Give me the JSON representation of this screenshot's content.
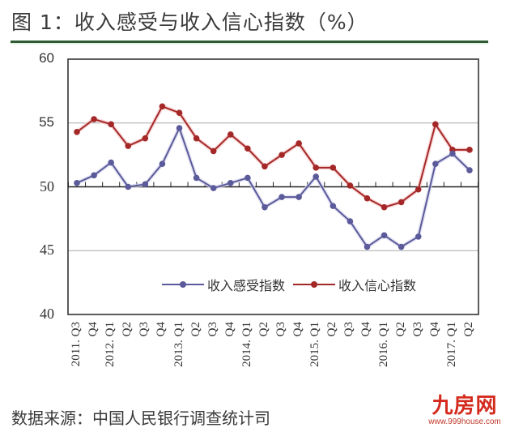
{
  "title": "图 1：收入感受与收入信心指数（%）",
  "source": "数据来源：中国人民银行调查统计司",
  "watermark": {
    "logo": "九房网",
    "url": "www.999house.com"
  },
  "colors": {
    "series1": "#5b5a9a",
    "series2": "#a52828",
    "rule": "#2f5a33",
    "frame": "#333333"
  },
  "chart_data": {
    "type": "line",
    "title": "图 1：收入感受与收入信心指数（%）",
    "xlabel": "",
    "ylabel": "",
    "ylim": [
      40,
      60
    ],
    "yticks": [
      40,
      45,
      50,
      55,
      60
    ],
    "grid": "horizontal at 45, 55; baseline axis at 50",
    "legend_position": "inside bottom",
    "categories": [
      "2011. Q3",
      "Q4",
      "2012. Q1",
      "Q2",
      "Q3",
      "Q4",
      "2013. Q1",
      "Q2",
      "Q3",
      "Q4",
      "2014. Q1",
      "Q2",
      "Q3",
      "Q4",
      "2015. Q1",
      "Q2",
      "Q3",
      "Q4",
      "2016. Q1",
      "Q2",
      "Q3",
      "Q4",
      "2017. Q1",
      "Q2"
    ],
    "series": [
      {
        "name": "收入感受指数",
        "color": "#5b5a9a",
        "values": [
          50.3,
          50.9,
          51.9,
          50.0,
          50.2,
          51.8,
          54.6,
          50.7,
          49.9,
          50.3,
          50.7,
          48.4,
          49.2,
          49.2,
          50.8,
          48.5,
          47.3,
          45.3,
          46.2,
          45.3,
          46.1,
          51.8,
          52.6,
          51.3
        ]
      },
      {
        "name": "收入信心指数",
        "color": "#a52828",
        "values": [
          54.3,
          55.3,
          54.9,
          53.2,
          53.8,
          56.3,
          55.8,
          53.8,
          52.8,
          54.1,
          53.0,
          51.6,
          52.5,
          53.4,
          51.5,
          51.5,
          50.1,
          49.1,
          48.4,
          48.8,
          49.8,
          54.9,
          52.9,
          52.9
        ]
      }
    ]
  }
}
